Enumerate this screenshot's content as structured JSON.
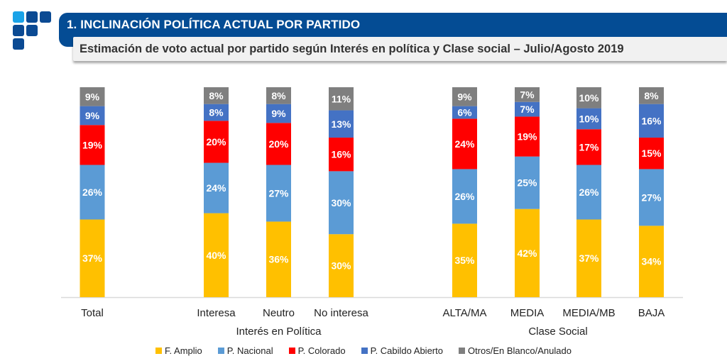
{
  "header": {
    "title": "1. INCLINACIÓN POLÍTICA ACTUAL POR PARTIDO",
    "subtitle": "Estimación de voto actual por partido según Interés en política y Clase social – Julio/Agosto 2019"
  },
  "logo": {
    "icon": "brand-logo-icon",
    "colors": [
      "#1aa3e8",
      "#0b4a93"
    ]
  },
  "chart_data": {
    "type": "bar",
    "stacked": true,
    "title": "Estimación de voto actual por partido según Interés en política y Clase social – Julio/Agosto 2019",
    "xlabel": "",
    "ylabel": "",
    "ylim": [
      0,
      100
    ],
    "grid": false,
    "legend_position": "bottom",
    "categories": [
      "Total",
      "Interesa",
      "Neutro",
      "No interesa",
      "ALTA/MA",
      "MEDIA",
      "MEDIA/MB",
      "BAJA"
    ],
    "groups": [
      {
        "label": "Interés en Política",
        "categories": [
          "Interesa",
          "Neutro",
          "No interesa"
        ]
      },
      {
        "label": "Clase Social",
        "categories": [
          "ALTA/MA",
          "MEDIA",
          "MEDIA/MB",
          "BAJA"
        ]
      }
    ],
    "series": [
      {
        "name": "F. Amplio",
        "color": "#ffc000",
        "values": [
          37,
          40,
          36,
          30,
          35,
          42,
          37,
          34
        ]
      },
      {
        "name": "P. Nacional",
        "color": "#5b9bd5",
        "values": [
          26,
          24,
          27,
          30,
          26,
          25,
          26,
          27
        ]
      },
      {
        "name": "P. Colorado",
        "color": "#ff0000",
        "values": [
          19,
          20,
          20,
          16,
          24,
          19,
          17,
          15
        ]
      },
      {
        "name": "P. Cabildo Abierto",
        "color": "#4472c4",
        "values": [
          9,
          8,
          9,
          13,
          6,
          7,
          10,
          16
        ]
      },
      {
        "name": "Otros/En Blanco/Anulado",
        "color": "#7f7f7f",
        "values": [
          9,
          8,
          8,
          11,
          9,
          7,
          10,
          8
        ]
      }
    ],
    "value_suffix": "%"
  }
}
